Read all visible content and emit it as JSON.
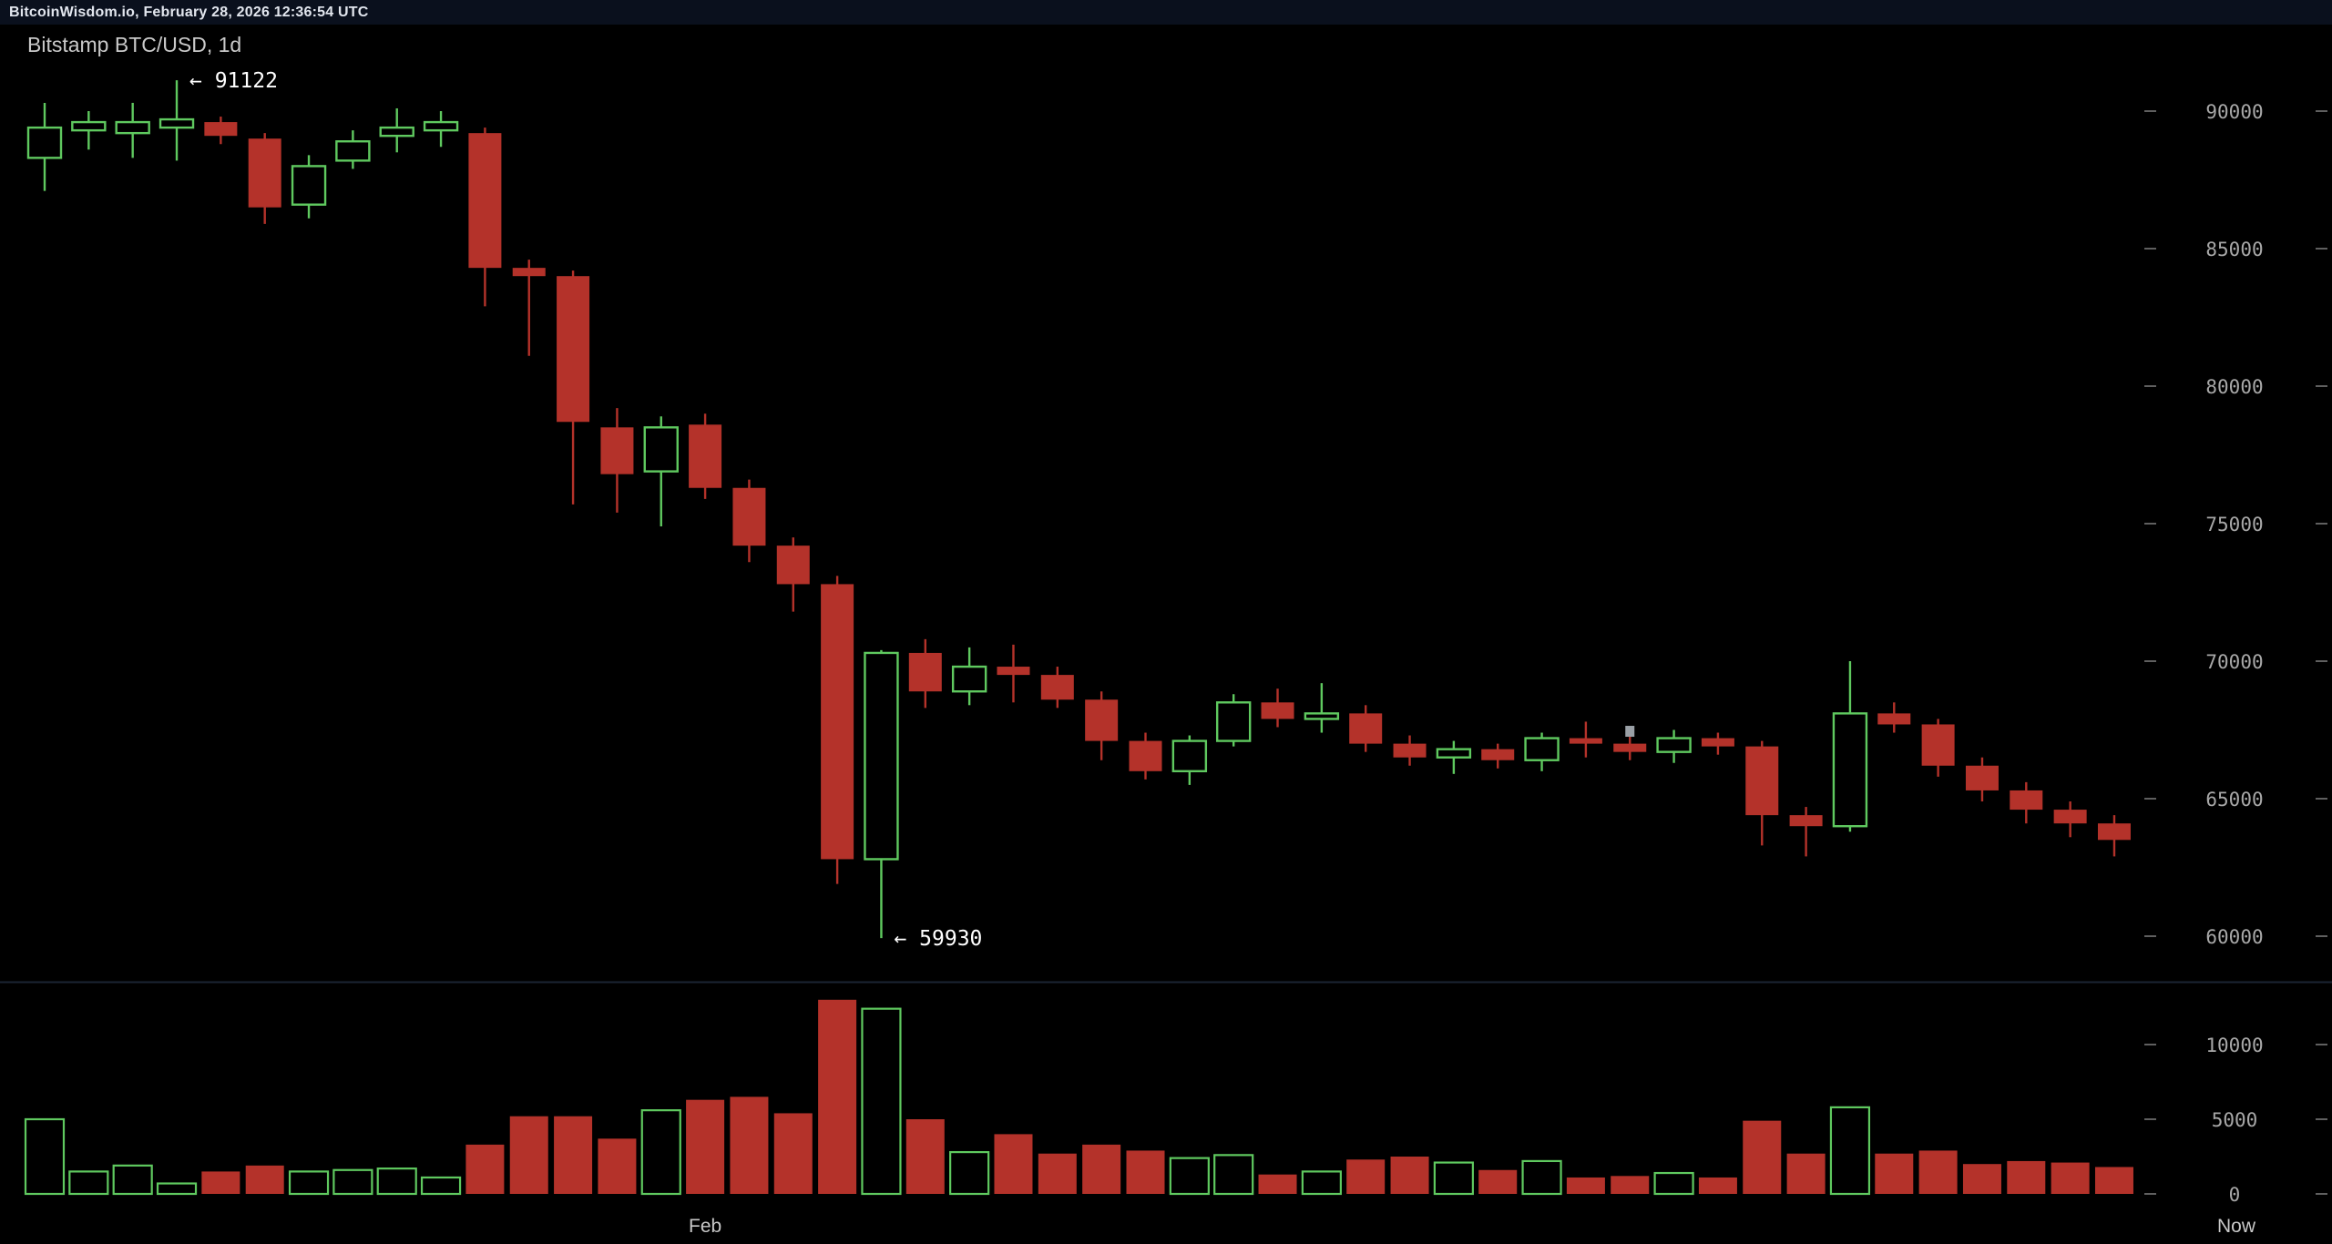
{
  "topbar": {
    "text": "BitcoinWisdom.io, February 28, 2026 12:36:54 UTC"
  },
  "chart": {
    "title": "Bitstamp BTC/USD, 1d"
  },
  "colors": {
    "up": "#5fc95f",
    "down": "#b4322a",
    "background": "#000000",
    "topbar_bg": "#0a101d",
    "topbar_text": "#e2e6ee",
    "title_text": "#c9c9c9",
    "axis_text": "#a8a8a8",
    "tick_dash": "#5f5f5f",
    "xaxis_text": "#c8c8c8",
    "annotation_text": "#ffffff",
    "divider": "#1b2433",
    "marker": "#9aa0a6"
  },
  "chart_data": {
    "type": "candlestick",
    "title": "Bitstamp BTC/USD, 1d",
    "symbol": "Bitstamp BTC/USD",
    "interval": "1d",
    "legend_position": "none",
    "grid": false,
    "price_axis": {
      "side": "right",
      "ticks": [
        90000,
        85000,
        80000,
        75000,
        70000,
        65000,
        60000
      ]
    },
    "volume_axis": {
      "side": "right",
      "ticks": [
        10000,
        5000,
        0
      ]
    },
    "xaxis": {
      "month_label": "Feb",
      "month_candle": 15,
      "now_label": "Now"
    },
    "annotations": [
      {
        "kind": "high",
        "candle": 3,
        "price": 91122,
        "label": "← 91122"
      },
      {
        "kind": "low",
        "candle": 19,
        "price": 59930,
        "label": "← 59930"
      }
    ],
    "marker": {
      "candle": 36,
      "price": 67450
    },
    "columns": [
      "open",
      "high",
      "low",
      "close",
      "volume"
    ],
    "candles": [
      [
        88300,
        90300,
        87100,
        89400,
        5000
      ],
      [
        89300,
        90000,
        88600,
        89600,
        1500
      ],
      [
        89200,
        90300,
        88300,
        89600,
        1900
      ],
      [
        89400,
        91122,
        88200,
        89700,
        700
      ],
      [
        89600,
        89800,
        88800,
        89100,
        1500
      ],
      [
        89000,
        89200,
        85900,
        86500,
        1900
      ],
      [
        86600,
        88400,
        86100,
        88000,
        1500
      ],
      [
        88200,
        89300,
        87900,
        88900,
        1600
      ],
      [
        89100,
        90100,
        88500,
        89400,
        1700
      ],
      [
        89300,
        90000,
        88700,
        89600,
        1100
      ],
      [
        89200,
        89400,
        82900,
        84300,
        3300
      ],
      [
        84300,
        84600,
        81100,
        84000,
        5200
      ],
      [
        84000,
        84200,
        75700,
        78700,
        5200
      ],
      [
        78500,
        79200,
        75400,
        76800,
        3700
      ],
      [
        76900,
        78900,
        74900,
        78500,
        5600
      ],
      [
        78600,
        79000,
        75900,
        76300,
        6300
      ],
      [
        76300,
        76600,
        73600,
        74200,
        6500
      ],
      [
        74200,
        74500,
        71800,
        72800,
        5400
      ],
      [
        72800,
        73100,
        61900,
        62800,
        13000
      ],
      [
        62800,
        70400,
        59930,
        70300,
        12400
      ],
      [
        70300,
        70800,
        68300,
        68900,
        5000
      ],
      [
        68900,
        70500,
        68400,
        69800,
        2800
      ],
      [
        69800,
        70600,
        68500,
        69500,
        4000
      ],
      [
        69500,
        69800,
        68300,
        68600,
        2700
      ],
      [
        68600,
        68900,
        66400,
        67100,
        3300
      ],
      [
        67100,
        67400,
        65700,
        66000,
        2900
      ],
      [
        66000,
        67300,
        65500,
        67100,
        2400
      ],
      [
        67100,
        68800,
        66900,
        68500,
        2600
      ],
      [
        68500,
        69000,
        67600,
        67900,
        1300
      ],
      [
        67900,
        69200,
        67400,
        68100,
        1500
      ],
      [
        68100,
        68400,
        66700,
        67000,
        2300
      ],
      [
        67000,
        67300,
        66200,
        66500,
        2500
      ],
      [
        66500,
        67100,
        65900,
        66800,
        2100
      ],
      [
        66800,
        67000,
        66100,
        66400,
        1600
      ],
      [
        66400,
        67400,
        66000,
        67200,
        2200
      ],
      [
        67200,
        67800,
        66500,
        67000,
        1100
      ],
      [
        67000,
        67300,
        66400,
        66700,
        1200
      ],
      [
        66700,
        67500,
        66300,
        67200,
        1400
      ],
      [
        67200,
        67400,
        66600,
        66900,
        1100
      ],
      [
        66900,
        67100,
        63300,
        64400,
        4900
      ],
      [
        64400,
        64700,
        62900,
        64000,
        2700
      ],
      [
        64000,
        70000,
        63800,
        68100,
        5800
      ],
      [
        68100,
        68500,
        67400,
        67700,
        2700
      ],
      [
        67700,
        67900,
        65800,
        66200,
        2900
      ],
      [
        66200,
        66500,
        64900,
        65300,
        2000
      ],
      [
        65300,
        65600,
        64100,
        64600,
        2200
      ],
      [
        64600,
        64900,
        63600,
        64100,
        2100
      ],
      [
        64100,
        64400,
        62900,
        63500,
        1800
      ]
    ]
  }
}
